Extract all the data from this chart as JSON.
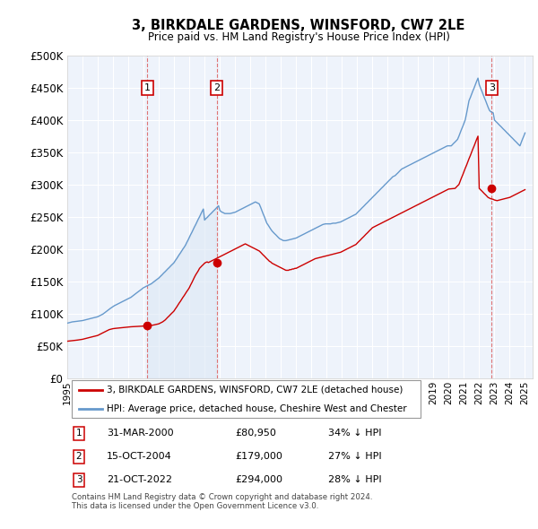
{
  "title": "3, BIRKDALE GARDENS, WINSFORD, CW7 2LE",
  "subtitle": "Price paid vs. HM Land Registry's House Price Index (HPI)",
  "ylim": [
    0,
    500000
  ],
  "yticks": [
    0,
    50000,
    100000,
    150000,
    200000,
    250000,
    300000,
    350000,
    400000,
    450000,
    500000
  ],
  "ytick_labels": [
    "£0",
    "£50K",
    "£100K",
    "£150K",
    "£200K",
    "£250K",
    "£300K",
    "£350K",
    "£400K",
    "£450K",
    "£500K"
  ],
  "xlim_start": 1995.0,
  "xlim_end": 2025.5,
  "purchases": [
    {
      "date": 2000.25,
      "price": 80950,
      "label": "1"
    },
    {
      "date": 2004.79,
      "price": 179000,
      "label": "2"
    },
    {
      "date": 2022.81,
      "price": 294000,
      "label": "3"
    }
  ],
  "table_rows": [
    {
      "num": "1",
      "date": "31-MAR-2000",
      "price": "£80,950",
      "hpi": "34% ↓ HPI"
    },
    {
      "num": "2",
      "date": "15-OCT-2004",
      "price": "£179,000",
      "hpi": "27% ↓ HPI"
    },
    {
      "num": "3",
      "date": "21-OCT-2022",
      "price": "£294,000",
      "hpi": "28% ↓ HPI"
    }
  ],
  "legend_line1": "3, BIRKDALE GARDENS, WINSFORD, CW7 2LE (detached house)",
  "legend_line2": "HPI: Average price, detached house, Cheshire West and Chester",
  "footer": "Contains HM Land Registry data © Crown copyright and database right 2024.\nThis data is licensed under the Open Government Licence v3.0.",
  "red_color": "#cc0000",
  "blue_color": "#6699cc",
  "blue_fill": "#dce8f5",
  "dashed_color": "#dd6666",
  "bg_chart": "#eef3fb",
  "grid_color": "#ffffff",
  "hpi_years": [
    1995.0,
    1995.08,
    1995.17,
    1995.25,
    1995.33,
    1995.42,
    1995.5,
    1995.58,
    1995.67,
    1995.75,
    1995.83,
    1995.92,
    1996.0,
    1996.08,
    1996.17,
    1996.25,
    1996.33,
    1996.42,
    1996.5,
    1996.58,
    1996.67,
    1996.75,
    1996.83,
    1996.92,
    1997.0,
    1997.08,
    1997.17,
    1997.25,
    1997.33,
    1997.42,
    1997.5,
    1997.58,
    1997.67,
    1997.75,
    1997.83,
    1997.92,
    1998.0,
    1998.08,
    1998.17,
    1998.25,
    1998.33,
    1998.42,
    1998.5,
    1998.58,
    1998.67,
    1998.75,
    1998.83,
    1998.92,
    1999.0,
    1999.08,
    1999.17,
    1999.25,
    1999.33,
    1999.42,
    1999.5,
    1999.58,
    1999.67,
    1999.75,
    1999.83,
    1999.92,
    2000.0,
    2000.08,
    2000.17,
    2000.25,
    2000.33,
    2000.42,
    2000.5,
    2000.58,
    2000.67,
    2000.75,
    2000.83,
    2000.92,
    2001.0,
    2001.08,
    2001.17,
    2001.25,
    2001.33,
    2001.42,
    2001.5,
    2001.58,
    2001.67,
    2001.75,
    2001.83,
    2001.92,
    2002.0,
    2002.08,
    2002.17,
    2002.25,
    2002.33,
    2002.42,
    2002.5,
    2002.58,
    2002.67,
    2002.75,
    2002.83,
    2002.92,
    2003.0,
    2003.08,
    2003.17,
    2003.25,
    2003.33,
    2003.42,
    2003.5,
    2003.58,
    2003.67,
    2003.75,
    2003.83,
    2003.92,
    2004.0,
    2004.08,
    2004.17,
    2004.25,
    2004.33,
    2004.42,
    2004.5,
    2004.58,
    2004.67,
    2004.75,
    2004.83,
    2004.92,
    2005.0,
    2005.08,
    2005.17,
    2005.25,
    2005.33,
    2005.42,
    2005.5,
    2005.58,
    2005.67,
    2005.75,
    2005.83,
    2005.92,
    2006.0,
    2006.08,
    2006.17,
    2006.25,
    2006.33,
    2006.42,
    2006.5,
    2006.58,
    2006.67,
    2006.75,
    2006.83,
    2006.92,
    2007.0,
    2007.08,
    2007.17,
    2007.25,
    2007.33,
    2007.42,
    2007.5,
    2007.58,
    2007.67,
    2007.75,
    2007.83,
    2007.92,
    2008.0,
    2008.08,
    2008.17,
    2008.25,
    2008.33,
    2008.42,
    2008.5,
    2008.58,
    2008.67,
    2008.75,
    2008.83,
    2008.92,
    2009.0,
    2009.08,
    2009.17,
    2009.25,
    2009.33,
    2009.42,
    2009.5,
    2009.58,
    2009.67,
    2009.75,
    2009.83,
    2009.92,
    2010.0,
    2010.08,
    2010.17,
    2010.25,
    2010.33,
    2010.42,
    2010.5,
    2010.58,
    2010.67,
    2010.75,
    2010.83,
    2010.92,
    2011.0,
    2011.08,
    2011.17,
    2011.25,
    2011.33,
    2011.42,
    2011.5,
    2011.58,
    2011.67,
    2011.75,
    2011.83,
    2011.92,
    2012.0,
    2012.08,
    2012.17,
    2012.25,
    2012.33,
    2012.42,
    2012.5,
    2012.58,
    2012.67,
    2012.75,
    2012.83,
    2012.92,
    2013.0,
    2013.08,
    2013.17,
    2013.25,
    2013.33,
    2013.42,
    2013.5,
    2013.58,
    2013.67,
    2013.75,
    2013.83,
    2013.92,
    2014.0,
    2014.08,
    2014.17,
    2014.25,
    2014.33,
    2014.42,
    2014.5,
    2014.58,
    2014.67,
    2014.75,
    2014.83,
    2014.92,
    2015.0,
    2015.08,
    2015.17,
    2015.25,
    2015.33,
    2015.42,
    2015.5,
    2015.58,
    2015.67,
    2015.75,
    2015.83,
    2015.92,
    2016.0,
    2016.08,
    2016.17,
    2016.25,
    2016.33,
    2016.42,
    2016.5,
    2016.58,
    2016.67,
    2016.75,
    2016.83,
    2016.92,
    2017.0,
    2017.08,
    2017.17,
    2017.25,
    2017.33,
    2017.42,
    2017.5,
    2017.58,
    2017.67,
    2017.75,
    2017.83,
    2017.92,
    2018.0,
    2018.08,
    2018.17,
    2018.25,
    2018.33,
    2018.42,
    2018.5,
    2018.58,
    2018.67,
    2018.75,
    2018.83,
    2018.92,
    2019.0,
    2019.08,
    2019.17,
    2019.25,
    2019.33,
    2019.42,
    2019.5,
    2019.58,
    2019.67,
    2019.75,
    2019.83,
    2019.92,
    2020.0,
    2020.08,
    2020.17,
    2020.25,
    2020.33,
    2020.42,
    2020.5,
    2020.58,
    2020.67,
    2020.75,
    2020.83,
    2020.92,
    2021.0,
    2021.08,
    2021.17,
    2021.25,
    2021.33,
    2021.42,
    2021.5,
    2021.58,
    2021.67,
    2021.75,
    2021.83,
    2021.92,
    2022.0,
    2022.08,
    2022.17,
    2022.25,
    2022.33,
    2022.42,
    2022.5,
    2022.58,
    2022.67,
    2022.75,
    2022.83,
    2022.92,
    2023.0,
    2023.08,
    2023.17,
    2023.25,
    2023.33,
    2023.42,
    2023.5,
    2023.58,
    2023.67,
    2023.75,
    2023.83,
    2023.92,
    2024.0,
    2024.08,
    2024.17,
    2024.25,
    2024.33,
    2024.42,
    2024.5,
    2024.58,
    2024.67,
    2024.75,
    2024.83,
    2024.92,
    2025.0
  ],
  "hpi_values": [
    85000,
    85500,
    86000,
    86500,
    87000,
    87200,
    87500,
    87800,
    88000,
    88200,
    88500,
    88800,
    89000,
    89500,
    90000,
    90500,
    91000,
    91500,
    92000,
    92500,
    93000,
    93500,
    94000,
    94500,
    95000,
    96000,
    97000,
    98000,
    99000,
    100500,
    102000,
    103500,
    105000,
    106500,
    108000,
    109500,
    111000,
    112000,
    113000,
    114000,
    115000,
    116000,
    117000,
    118000,
    119000,
    120000,
    121000,
    122000,
    123000,
    124000,
    125000,
    126500,
    128000,
    129500,
    131000,
    132500,
    134000,
    135500,
    137000,
    138500,
    140000,
    141000,
    142000,
    143000,
    144000,
    145000,
    146000,
    147500,
    149000,
    150500,
    152000,
    153500,
    155000,
    157000,
    159000,
    161000,
    163000,
    165000,
    167000,
    169000,
    171000,
    173000,
    175000,
    177000,
    179000,
    182000,
    185000,
    188000,
    191000,
    194000,
    197000,
    200000,
    203000,
    206000,
    210000,
    214000,
    218000,
    222000,
    226000,
    230000,
    234000,
    238000,
    242000,
    246000,
    250000,
    254000,
    258000,
    262000,
    245000,
    247000,
    249000,
    251000,
    253000,
    255000,
    257000,
    259000,
    261000,
    263000,
    265000,
    267000,
    260000,
    258000,
    257000,
    256000,
    255000,
    255000,
    255000,
    255000,
    255000,
    255500,
    256000,
    256500,
    257000,
    258000,
    259000,
    260000,
    261000,
    262000,
    263000,
    264000,
    265000,
    266000,
    267000,
    268000,
    269000,
    270000,
    271000,
    272000,
    273000,
    272000,
    271000,
    270000,
    265000,
    260000,
    255000,
    250000,
    245000,
    240000,
    237000,
    234000,
    231000,
    228000,
    226000,
    224000,
    222000,
    220000,
    218000,
    216000,
    215000,
    214000,
    213000,
    213000,
    213000,
    213500,
    214000,
    214500,
    215000,
    215500,
    216000,
    216500,
    217000,
    218000,
    219000,
    220000,
    221000,
    222000,
    223000,
    224000,
    225000,
    226000,
    227000,
    228000,
    229000,
    230000,
    231000,
    232000,
    233000,
    234000,
    235000,
    236000,
    237000,
    238000,
    238500,
    239000,
    239000,
    239000,
    239000,
    239000,
    239500,
    240000,
    240000,
    240000,
    240500,
    241000,
    241500,
    242000,
    243000,
    244000,
    245000,
    246000,
    247000,
    248000,
    249000,
    250000,
    251000,
    252000,
    253000,
    254000,
    256000,
    258000,
    260000,
    262000,
    264000,
    266000,
    268000,
    270000,
    272000,
    274000,
    276000,
    278000,
    280000,
    282000,
    284000,
    286000,
    288000,
    290000,
    292000,
    294000,
    296000,
    298000,
    300000,
    302000,
    304000,
    306000,
    308000,
    310000,
    312000,
    313000,
    314000,
    316000,
    318000,
    320000,
    322000,
    324000,
    325000,
    326000,
    327000,
    328000,
    329000,
    330000,
    331000,
    332000,
    333000,
    334000,
    335000,
    336000,
    337000,
    338000,
    339000,
    340000,
    341000,
    342000,
    343000,
    344000,
    345000,
    346000,
    347000,
    348000,
    349000,
    350000,
    351000,
    352000,
    353000,
    354000,
    355000,
    356000,
    357000,
    358000,
    359000,
    360000,
    360000,
    360000,
    360000,
    362000,
    364000,
    366000,
    368000,
    370000,
    375000,
    380000,
    385000,
    390000,
    395000,
    400000,
    410000,
    420000,
    430000,
    435000,
    440000,
    445000,
    450000,
    455000,
    460000,
    465000,
    455000,
    450000,
    445000,
    440000,
    435000,
    430000,
    425000,
    420000,
    415000,
    413000,
    412000,
    411000,
    400000,
    398000,
    396000,
    394000,
    392000,
    390000,
    388000,
    386000,
    384000,
    382000,
    380000,
    378000,
    376000,
    374000,
    372000,
    370000,
    368000,
    366000,
    364000,
    362000,
    360000,
    365000,
    370000,
    375000,
    380000
  ],
  "red_years": [
    1995.0,
    1995.08,
    1995.17,
    1995.25,
    1995.33,
    1995.42,
    1995.5,
    1995.58,
    1995.67,
    1995.75,
    1995.83,
    1995.92,
    1996.0,
    1996.08,
    1996.17,
    1996.25,
    1996.33,
    1996.42,
    1996.5,
    1996.58,
    1996.67,
    1996.75,
    1996.83,
    1996.92,
    1997.0,
    1997.08,
    1997.17,
    1997.25,
    1997.33,
    1997.42,
    1997.5,
    1997.58,
    1997.67,
    1997.75,
    1997.83,
    1997.92,
    1998.0,
    1998.08,
    1998.17,
    1998.25,
    1998.33,
    1998.42,
    1998.5,
    1998.58,
    1998.67,
    1998.75,
    1998.83,
    1998.92,
    1999.0,
    1999.08,
    1999.17,
    1999.25,
    1999.33,
    1999.42,
    1999.5,
    1999.58,
    1999.67,
    1999.75,
    1999.83,
    1999.92,
    2000.0,
    2000.08,
    2000.17,
    2000.25,
    2000.33,
    2000.42,
    2000.5,
    2000.58,
    2000.67,
    2000.75,
    2000.83,
    2000.92,
    2001.0,
    2001.08,
    2001.17,
    2001.25,
    2001.33,
    2001.42,
    2001.5,
    2001.58,
    2001.67,
    2001.75,
    2001.83,
    2001.92,
    2002.0,
    2002.08,
    2002.17,
    2002.25,
    2002.33,
    2002.42,
    2002.5,
    2002.58,
    2002.67,
    2002.75,
    2002.83,
    2002.92,
    2003.0,
    2003.08,
    2003.17,
    2003.25,
    2003.33,
    2003.42,
    2003.5,
    2003.58,
    2003.67,
    2003.75,
    2003.83,
    2003.92,
    2004.0,
    2004.08,
    2004.17,
    2004.25,
    2004.33,
    2004.42,
    2004.5,
    2004.58,
    2004.67,
    2004.75,
    2004.83,
    2004.92,
    2005.0,
    2005.08,
    2005.17,
    2005.25,
    2005.33,
    2005.42,
    2005.5,
    2005.58,
    2005.67,
    2005.75,
    2005.83,
    2005.92,
    2006.0,
    2006.08,
    2006.17,
    2006.25,
    2006.33,
    2006.42,
    2006.5,
    2006.58,
    2006.67,
    2006.75,
    2006.83,
    2006.92,
    2007.0,
    2007.08,
    2007.17,
    2007.25,
    2007.33,
    2007.42,
    2007.5,
    2007.58,
    2007.67,
    2007.75,
    2007.83,
    2007.92,
    2008.0,
    2008.08,
    2008.17,
    2008.25,
    2008.33,
    2008.42,
    2008.5,
    2008.58,
    2008.67,
    2008.75,
    2008.83,
    2008.92,
    2009.0,
    2009.08,
    2009.17,
    2009.25,
    2009.33,
    2009.42,
    2009.5,
    2009.58,
    2009.67,
    2009.75,
    2009.83,
    2009.92,
    2010.0,
    2010.08,
    2010.17,
    2010.25,
    2010.33,
    2010.42,
    2010.5,
    2010.58,
    2010.67,
    2010.75,
    2010.83,
    2010.92,
    2011.0,
    2011.08,
    2011.17,
    2011.25,
    2011.33,
    2011.42,
    2011.5,
    2011.58,
    2011.67,
    2011.75,
    2011.83,
    2011.92,
    2012.0,
    2012.08,
    2012.17,
    2012.25,
    2012.33,
    2012.42,
    2012.5,
    2012.58,
    2012.67,
    2012.75,
    2012.83,
    2012.92,
    2013.0,
    2013.08,
    2013.17,
    2013.25,
    2013.33,
    2013.42,
    2013.5,
    2013.58,
    2013.67,
    2013.75,
    2013.83,
    2013.92,
    2014.0,
    2014.08,
    2014.17,
    2014.25,
    2014.33,
    2014.42,
    2014.5,
    2014.58,
    2014.67,
    2014.75,
    2014.83,
    2014.92,
    2015.0,
    2015.08,
    2015.17,
    2015.25,
    2015.33,
    2015.42,
    2015.5,
    2015.58,
    2015.67,
    2015.75,
    2015.83,
    2015.92,
    2016.0,
    2016.08,
    2016.17,
    2016.25,
    2016.33,
    2016.42,
    2016.5,
    2016.58,
    2016.67,
    2016.75,
    2016.83,
    2016.92,
    2017.0,
    2017.08,
    2017.17,
    2017.25,
    2017.33,
    2017.42,
    2017.5,
    2017.58,
    2017.67,
    2017.75,
    2017.83,
    2017.92,
    2018.0,
    2018.08,
    2018.17,
    2018.25,
    2018.33,
    2018.42,
    2018.5,
    2018.58,
    2018.67,
    2018.75,
    2018.83,
    2018.92,
    2019.0,
    2019.08,
    2019.17,
    2019.25,
    2019.33,
    2019.42,
    2019.5,
    2019.58,
    2019.67,
    2019.75,
    2019.83,
    2019.92,
    2020.0,
    2020.08,
    2020.17,
    2020.25,
    2020.33,
    2020.42,
    2020.5,
    2020.58,
    2020.67,
    2020.75,
    2020.83,
    2020.92,
    2021.0,
    2021.08,
    2021.17,
    2021.25,
    2021.33,
    2021.42,
    2021.5,
    2021.58,
    2021.67,
    2021.75,
    2021.83,
    2021.92,
    2022.0,
    2022.08,
    2022.17,
    2022.25,
    2022.33,
    2022.42,
    2022.5,
    2022.58,
    2022.67,
    2022.75,
    2022.83,
    2022.92,
    2023.0,
    2023.08,
    2023.17,
    2023.25,
    2023.33,
    2023.42,
    2023.5,
    2023.58,
    2023.67,
    2023.75,
    2023.83,
    2023.92,
    2024.0,
    2024.08,
    2024.17,
    2024.25,
    2024.33,
    2024.42,
    2024.5,
    2024.58,
    2024.67,
    2024.75,
    2024.83,
    2024.92,
    2025.0
  ],
  "red_values": [
    57000,
    57200,
    57400,
    57600,
    57800,
    58000,
    58200,
    58500,
    58800,
    59100,
    59400,
    59700,
    60000,
    60500,
    61000,
    61500,
    62000,
    62500,
    63000,
    63500,
    64000,
    64500,
    65000,
    65500,
    66000,
    67000,
    68000,
    69000,
    70000,
    71000,
    72000,
    73000,
    74000,
    75000,
    75500,
    76000,
    76500,
    76800,
    77000,
    77200,
    77400,
    77600,
    77800,
    78000,
    78200,
    78400,
    78600,
    78800,
    79000,
    79200,
    79400,
    79500,
    79600,
    79700,
    79800,
    79900,
    80000,
    80100,
    80200,
    80400,
    80600,
    80700,
    80800,
    80950,
    81000,
    81200,
    81500,
    81800,
    82200,
    82600,
    83000,
    83500,
    84000,
    85000,
    86000,
    87000,
    88500,
    90000,
    92000,
    94000,
    96000,
    98000,
    100000,
    102000,
    104000,
    107000,
    110000,
    113000,
    116000,
    119000,
    122000,
    125000,
    128000,
    131000,
    134000,
    137000,
    140000,
    144000,
    148000,
    152000,
    156000,
    160000,
    163000,
    166000,
    170000,
    172000,
    174000,
    176000,
    178000,
    179200,
    180000,
    179000,
    180000,
    181000,
    182000,
    183000,
    184000,
    185000,
    186000,
    187000,
    188000,
    189000,
    190000,
    191000,
    192000,
    193000,
    194000,
    195000,
    196000,
    197000,
    198000,
    199000,
    200000,
    201000,
    202000,
    203000,
    204000,
    205000,
    206000,
    207000,
    208000,
    207000,
    206000,
    205000,
    204000,
    203000,
    202000,
    201000,
    200000,
    199000,
    198000,
    197000,
    195000,
    193000,
    191000,
    189000,
    187000,
    185000,
    183000,
    181000,
    180000,
    178000,
    177000,
    176000,
    175000,
    174000,
    173000,
    172000,
    171000,
    170000,
    169000,
    168000,
    167000,
    167000,
    167000,
    168000,
    168000,
    169000,
    169000,
    170000,
    170000,
    171000,
    172000,
    173000,
    174000,
    175000,
    176000,
    177000,
    178000,
    179000,
    180000,
    181000,
    182000,
    183000,
    184000,
    185000,
    185500,
    186000,
    186500,
    187000,
    187500,
    188000,
    188500,
    189000,
    189500,
    190000,
    190500,
    191000,
    191500,
    192000,
    192500,
    193000,
    193500,
    194000,
    194500,
    195000,
    196000,
    197000,
    198000,
    199000,
    200000,
    201000,
    202000,
    203000,
    204000,
    205000,
    206000,
    207000,
    209000,
    211000,
    213000,
    215000,
    217000,
    219000,
    221000,
    223000,
    225000,
    227000,
    229000,
    231000,
    233000,
    234000,
    235000,
    236000,
    237000,
    238000,
    239000,
    240000,
    241000,
    242000,
    243000,
    244000,
    245000,
    246000,
    247000,
    248000,
    249000,
    250000,
    251000,
    252000,
    253000,
    254000,
    255000,
    256000,
    257000,
    258000,
    259000,
    260000,
    261000,
    262000,
    263000,
    264000,
    265000,
    266000,
    267000,
    268000,
    269000,
    270000,
    271000,
    272000,
    273000,
    274000,
    275000,
    276000,
    277000,
    278000,
    279000,
    280000,
    281000,
    282000,
    283000,
    284000,
    285000,
    286000,
    287000,
    288000,
    289000,
    290000,
    291000,
    292000,
    293000,
    293200,
    293400,
    293600,
    293800,
    294000,
    296000,
    298000,
    300000,
    305000,
    310000,
    315000,
    320000,
    325000,
    330000,
    335000,
    340000,
    345000,
    350000,
    355000,
    360000,
    365000,
    370000,
    375000,
    294000,
    292000,
    290000,
    288000,
    286000,
    284000,
    282000,
    280000,
    279000,
    278000,
    277500,
    277000,
    276000,
    275500,
    275000,
    275500,
    276000,
    276500,
    277000,
    277500,
    278000,
    278500,
    279000,
    279500,
    280000,
    281000,
    282000,
    283000,
    284000,
    285000,
    286000,
    287000,
    288000,
    289000,
    290000,
    291000,
    292000
  ]
}
